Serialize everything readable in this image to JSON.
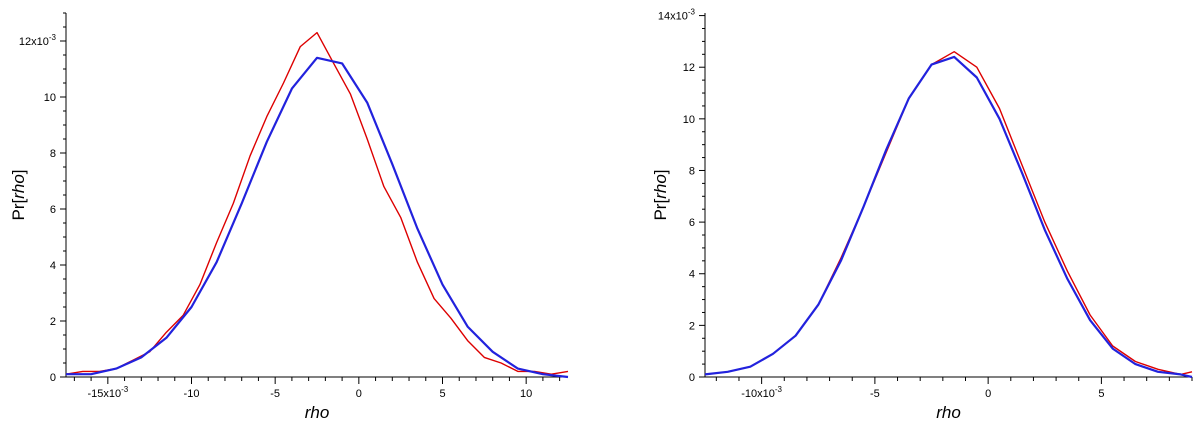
{
  "chart_data": [
    {
      "type": "line",
      "xlabel": "rho",
      "ylabel_prefix": "Pr[",
      "ylabel_var": "rho",
      "ylabel_suffix": "]",
      "xlim": [
        -0.0175,
        0.0125
      ],
      "ylim": [
        0,
        0.013
      ],
      "x_ticks": [
        {
          "value": -0.015,
          "label": "-15x10",
          "exp": "-3"
        },
        {
          "value": -0.01,
          "label": "-10",
          "exp": ""
        },
        {
          "value": -0.005,
          "label": "-5",
          "exp": ""
        },
        {
          "value": 0.0,
          "label": "0",
          "exp": ""
        },
        {
          "value": 0.005,
          "label": "5",
          "exp": ""
        },
        {
          "value": 0.01,
          "label": "10",
          "exp": ""
        }
      ],
      "y_ticks": [
        {
          "value": 0.0,
          "label": "0",
          "exp": ""
        },
        {
          "value": 0.002,
          "label": "2",
          "exp": ""
        },
        {
          "value": 0.004,
          "label": "4",
          "exp": ""
        },
        {
          "value": 0.006,
          "label": "6",
          "exp": ""
        },
        {
          "value": 0.008,
          "label": "8",
          "exp": ""
        },
        {
          "value": 0.01,
          "label": "10",
          "exp": ""
        },
        {
          "value": 0.012,
          "label": "12x10",
          "exp": "-3"
        }
      ],
      "series": [
        {
          "color": "#dd0000",
          "x": [
            -0.0175,
            -0.0165,
            -0.0155,
            -0.0145,
            -0.0135,
            -0.0125,
            -0.0115,
            -0.0105,
            -0.0095,
            -0.0085,
            -0.0075,
            -0.0065,
            -0.0055,
            -0.0045,
            -0.0035,
            -0.0025,
            -0.0015,
            -0.0005,
            0.0005,
            0.0015,
            0.0025,
            0.0035,
            0.0045,
            0.0055,
            0.0065,
            0.0075,
            0.0085,
            0.0095,
            0.0105,
            0.0115,
            0.0125
          ],
          "y": [
            0.0001,
            0.0002,
            0.0002,
            0.0003,
            0.0006,
            0.0009,
            0.0016,
            0.0022,
            0.0033,
            0.0048,
            0.0062,
            0.0079,
            0.0093,
            0.0105,
            0.0118,
            0.0123,
            0.0112,
            0.0101,
            0.0085,
            0.0068,
            0.0057,
            0.0041,
            0.0028,
            0.0021,
            0.0013,
            0.0007,
            0.0005,
            0.0002,
            0.0002,
            0.0001,
            0.0002
          ]
        },
        {
          "color": "#2222dd",
          "x": [
            -0.0175,
            -0.016,
            -0.0145,
            -0.013,
            -0.0115,
            -0.01,
            -0.0085,
            -0.007,
            -0.0055,
            -0.004,
            -0.0025,
            -0.001,
            0.0005,
            0.002,
            0.0035,
            0.005,
            0.0065,
            0.008,
            0.0095,
            0.011,
            0.0125
          ],
          "y": [
            0.0001,
            0.0001,
            0.0003,
            0.0007,
            0.0014,
            0.0025,
            0.0041,
            0.0062,
            0.0084,
            0.0103,
            0.0114,
            0.0112,
            0.0098,
            0.0076,
            0.0053,
            0.0033,
            0.0018,
            0.0009,
            0.0003,
            0.0001,
            0.0
          ]
        }
      ]
    },
    {
      "type": "line",
      "xlabel": "rho",
      "ylabel_prefix": "Pr[",
      "ylabel_var": "rho",
      "ylabel_suffix": "]",
      "xlim": [
        -0.0125,
        0.009
      ],
      "ylim": [
        0,
        0.0141
      ],
      "x_ticks": [
        {
          "value": -0.01,
          "label": "-10x10",
          "exp": "-3"
        },
        {
          "value": -0.005,
          "label": "-5",
          "exp": ""
        },
        {
          "value": 0.0,
          "label": "0",
          "exp": ""
        },
        {
          "value": 0.005,
          "label": "5",
          "exp": ""
        }
      ],
      "y_ticks": [
        {
          "value": 0.0,
          "label": "0",
          "exp": ""
        },
        {
          "value": 0.002,
          "label": "2",
          "exp": ""
        },
        {
          "value": 0.004,
          "label": "4",
          "exp": ""
        },
        {
          "value": 0.006,
          "label": "6",
          "exp": ""
        },
        {
          "value": 0.008,
          "label": "8",
          "exp": ""
        },
        {
          "value": 0.01,
          "label": "10",
          "exp": ""
        },
        {
          "value": 0.012,
          "label": "12",
          "exp": ""
        },
        {
          "value": 0.014,
          "label": "14x10",
          "exp": "-3"
        }
      ],
      "series": [
        {
          "color": "#dd0000",
          "x": [
            -0.0125,
            -0.0115,
            -0.0105,
            -0.0095,
            -0.0085,
            -0.0075,
            -0.0065,
            -0.0055,
            -0.0045,
            -0.0035,
            -0.0025,
            -0.0015,
            -0.0005,
            0.0005,
            0.0015,
            0.0025,
            0.0035,
            0.0045,
            0.0055,
            0.0065,
            0.0075,
            0.0085,
            0.009
          ],
          "y": [
            0.0001,
            0.0002,
            0.0004,
            0.0009,
            0.0016,
            0.0028,
            0.0046,
            0.0066,
            0.0087,
            0.0108,
            0.0121,
            0.0126,
            0.012,
            0.0104,
            0.0082,
            0.006,
            0.0041,
            0.0024,
            0.0012,
            0.0006,
            0.0003,
            0.0001,
            0.0002
          ]
        },
        {
          "color": "#2222dd",
          "x": [
            -0.0125,
            -0.0115,
            -0.0105,
            -0.0095,
            -0.0085,
            -0.0075,
            -0.0065,
            -0.0055,
            -0.0045,
            -0.0035,
            -0.0025,
            -0.0015,
            -0.0005,
            0.0005,
            0.0015,
            0.0025,
            0.0035,
            0.0045,
            0.0055,
            0.0065,
            0.0075,
            0.0085,
            0.009
          ],
          "y": [
            0.0001,
            0.0002,
            0.0004,
            0.0009,
            0.0016,
            0.0028,
            0.0045,
            0.0066,
            0.0088,
            0.0108,
            0.0121,
            0.0124,
            0.0116,
            0.01,
            0.0079,
            0.0057,
            0.0038,
            0.0022,
            0.0011,
            0.0005,
            0.0002,
            0.0001,
            0.0
          ]
        }
      ]
    }
  ]
}
